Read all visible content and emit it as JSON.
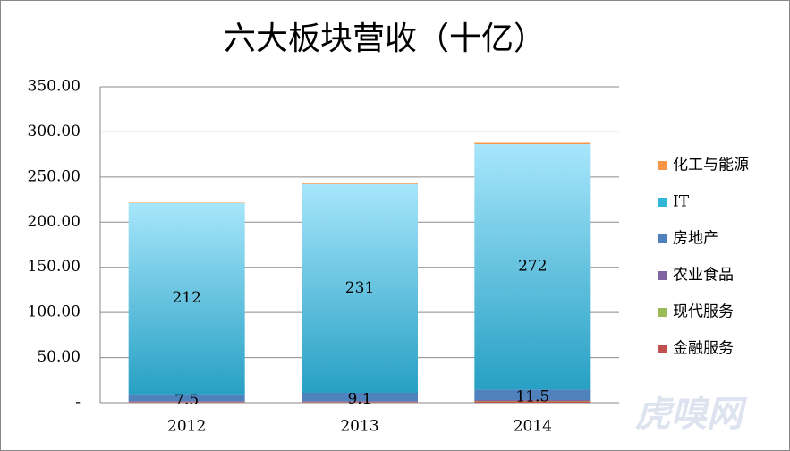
{
  "chart_data": {
    "type": "stacked-bar",
    "title": "六大板块营收（十亿）",
    "watermark": "虎嗅网",
    "categories": [
      "2012",
      "2013",
      "2014"
    ],
    "series": [
      {
        "name": "金融服务",
        "color": "#c0504d",
        "values": [
          0.5,
          0.5,
          1.5
        ],
        "show_labels": false
      },
      {
        "name": "现代服务",
        "color": "#9bbb59",
        "values": [
          0.3,
          0.3,
          0.5
        ],
        "show_labels": false
      },
      {
        "name": "农业食品",
        "color": "#8064a2",
        "values": [
          1,
          1,
          1
        ],
        "show_labels": false
      },
      {
        "name": "房地产",
        "color": "#4f81bd",
        "values": [
          7.5,
          9.1,
          11.5
        ],
        "show_labels": true
      },
      {
        "name": "IT",
        "color": "#31b6d8",
        "values": [
          212,
          231,
          272
        ],
        "show_labels": true
      },
      {
        "name": "化工与能源",
        "color": "#f79646",
        "values": [
          0.5,
          0.8,
          1.5
        ],
        "show_labels": false
      }
    ],
    "ylim": [
      0,
      350
    ],
    "yticks": [
      {
        "value": 0,
        "label": "-"
      },
      {
        "value": 50,
        "label": "50.00"
      },
      {
        "value": 100,
        "label": "100.00"
      },
      {
        "value": 150,
        "label": "150.00"
      },
      {
        "value": 200,
        "label": "200.00"
      },
      {
        "value": 250,
        "label": "250.00"
      },
      {
        "value": 300,
        "label": "300.00"
      },
      {
        "value": 350,
        "label": "350.00"
      }
    ],
    "grid": true
  }
}
